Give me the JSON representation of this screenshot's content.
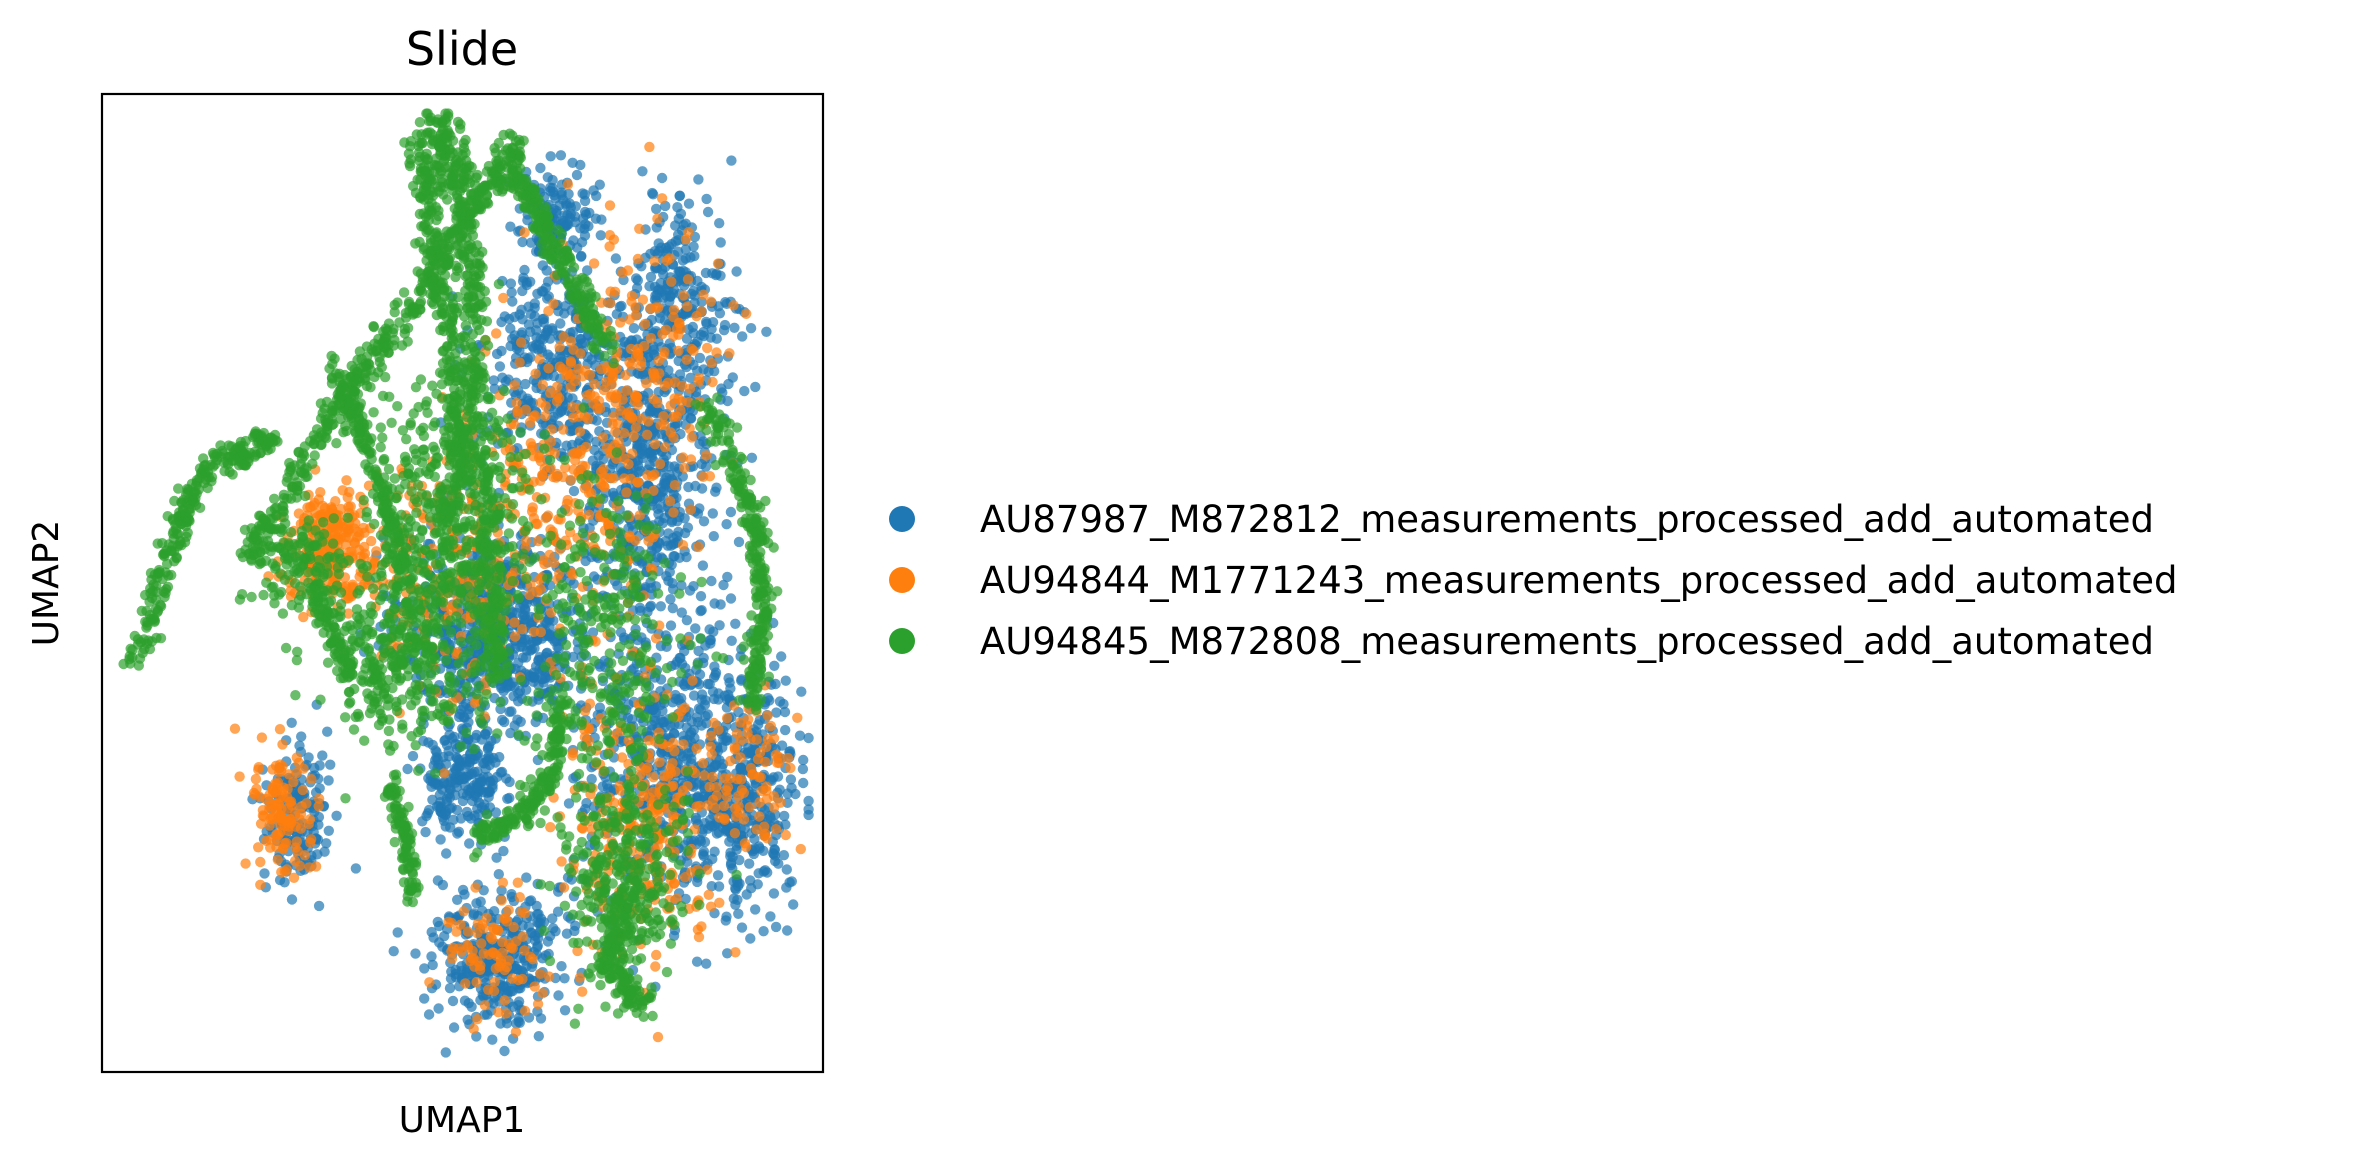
{
  "chart_data": {
    "type": "scatter",
    "title": "Slide",
    "xlabel": "UMAP1",
    "ylabel": "UMAP2",
    "xticks": [],
    "yticks": [],
    "xlim": [
      0,
      100
    ],
    "ylim": [
      0,
      100
    ],
    "grid": false,
    "legend_position": "right",
    "point_alpha": 0.7,
    "series": [
      {
        "name": "AU87987_M872812_measurements_processed_add_automated",
        "color": "#1f77b4",
        "regions": [
          {
            "cx": 55,
            "cy": 45,
            "rx": 12,
            "ry": 9,
            "n": 700
          },
          {
            "cx": 80,
            "cy": 32,
            "rx": 12,
            "ry": 14,
            "n": 650
          },
          {
            "cx": 75,
            "cy": 60,
            "rx": 9,
            "ry": 13,
            "n": 500
          },
          {
            "cx": 62,
            "cy": 72,
            "rx": 9,
            "ry": 10,
            "n": 350
          },
          {
            "cx": 80,
            "cy": 78,
            "rx": 7,
            "ry": 10,
            "n": 300
          },
          {
            "cx": 55,
            "cy": 12,
            "rx": 8,
            "ry": 7,
            "n": 350
          },
          {
            "cx": 27,
            "cy": 26,
            "rx": 4,
            "ry": 7,
            "n": 160
          },
          {
            "cx": 50,
            "cy": 30,
            "rx": 5,
            "ry": 5,
            "n": 220
          },
          {
            "cx": 90,
            "cy": 28,
            "rx": 7,
            "ry": 10,
            "n": 250
          },
          {
            "cx": 63,
            "cy": 88,
            "rx": 5,
            "ry": 4,
            "n": 120
          }
        ],
        "tracks": []
      },
      {
        "name": "AU94844_M1771243_measurements_processed_add_automated",
        "color": "#ff7f0e",
        "regions": [
          {
            "cx": 32,
            "cy": 54,
            "rx": 6,
            "ry": 5,
            "n": 260
          },
          {
            "cx": 75,
            "cy": 26,
            "rx": 10,
            "ry": 12,
            "n": 300
          },
          {
            "cx": 63,
            "cy": 60,
            "rx": 12,
            "ry": 15,
            "n": 250
          },
          {
            "cx": 25,
            "cy": 27,
            "rx": 4,
            "ry": 6,
            "n": 120
          },
          {
            "cx": 48,
            "cy": 50,
            "rx": 10,
            "ry": 12,
            "n": 200
          },
          {
            "cx": 55,
            "cy": 12,
            "rx": 7,
            "ry": 6,
            "n": 90
          },
          {
            "cx": 75,
            "cy": 70,
            "rx": 10,
            "ry": 15,
            "n": 220
          },
          {
            "cx": 90,
            "cy": 30,
            "rx": 6,
            "ry": 8,
            "n": 80
          }
        ],
        "tracks": []
      },
      {
        "name": "AU94845_M872808_measurements_processed_add_automated",
        "color": "#2ca02c",
        "regions": [
          {
            "cx": 48,
            "cy": 55,
            "rx": 10,
            "ry": 15,
            "n": 500
          },
          {
            "cx": 40,
            "cy": 42,
            "rx": 9,
            "ry": 8,
            "n": 300
          },
          {
            "cx": 70,
            "cy": 45,
            "rx": 10,
            "ry": 14,
            "n": 260
          },
          {
            "cx": 72,
            "cy": 20,
            "rx": 8,
            "ry": 10,
            "n": 320
          },
          {
            "cx": 27,
            "cy": 52,
            "rx": 6,
            "ry": 4,
            "n": 120
          }
        ],
        "tracks": [
          {
            "points": [
              [
                5,
                42
              ],
              [
                10,
                55
              ],
              [
                15,
                62
              ],
              [
                24,
                65
              ]
            ],
            "n": 260,
            "w": 1.6
          },
          {
            "points": [
              [
                20,
                52
              ],
              [
                30,
                65
              ],
              [
                40,
                75
              ],
              [
                50,
                87
              ],
              [
                58,
                95
              ]
            ],
            "n": 420,
            "w": 1.8
          },
          {
            "points": [
              [
                46,
                98
              ],
              [
                50,
                90
              ],
              [
                52,
                75
              ],
              [
                53,
                55
              ],
              [
                55,
                40
              ]
            ],
            "n": 450,
            "w": 2.2
          },
          {
            "points": [
              [
                44,
                95
              ],
              [
                46,
                85
              ],
              [
                49,
                72
              ],
              [
                50,
                60
              ]
            ],
            "n": 300,
            "w": 2.0
          },
          {
            "points": [
              [
                57,
                92
              ],
              [
                63,
                84
              ],
              [
                70,
                74
              ]
            ],
            "n": 220,
            "w": 1.6
          },
          {
            "points": [
              [
                32,
                72
              ],
              [
                38,
                62
              ],
              [
                42,
                50
              ]
            ],
            "n": 180,
            "w": 1.5
          },
          {
            "points": [
              [
                64,
                38
              ],
              [
                62,
                30
              ],
              [
                58,
                26
              ],
              [
                52,
                24
              ]
            ],
            "n": 180,
            "w": 1.5
          },
          {
            "points": [
              [
                84,
                68
              ],
              [
                90,
                58
              ],
              [
                92,
                48
              ],
              [
                90,
                38
              ]
            ],
            "n": 260,
            "w": 1.6
          },
          {
            "points": [
              [
                72,
                18
              ],
              [
                70,
                10
              ],
              [
                76,
                7
              ]
            ],
            "n": 150,
            "w": 1.8
          },
          {
            "points": [
              [
                40,
                30
              ],
              [
                42,
                24
              ],
              [
                43,
                18
              ]
            ],
            "n": 100,
            "w": 1.2
          },
          {
            "points": [
              [
                35,
                40
              ],
              [
                32,
                45
              ],
              [
                29,
                50
              ]
            ],
            "n": 90,
            "w": 1.2
          }
        ]
      }
    ]
  }
}
